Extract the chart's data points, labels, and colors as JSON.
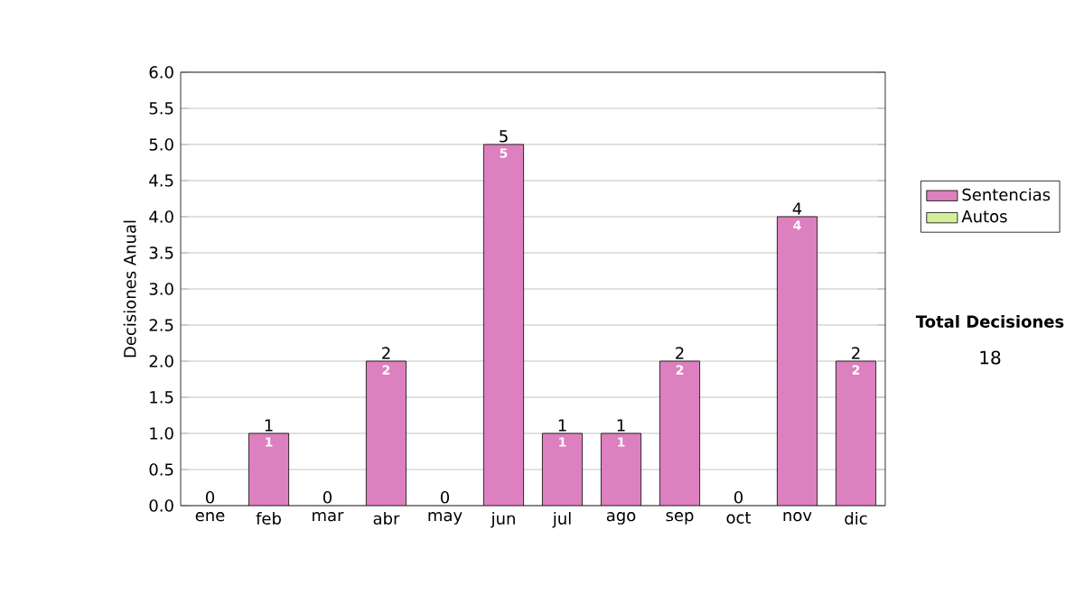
{
  "chart_data": {
    "type": "bar",
    "stacked": true,
    "ylabel": "Decisiones Anual",
    "categories": [
      "ene",
      "feb",
      "mar",
      "abr",
      "may",
      "jun",
      "jul",
      "ago",
      "sep",
      "oct",
      "nov",
      "dic"
    ],
    "series": [
      {
        "name": "Sentencias",
        "color": "#dd80bf",
        "values": [
          0,
          1,
          0,
          2,
          0,
          5,
          1,
          1,
          2,
          0,
          4,
          2
        ],
        "value_labels": [
          null,
          "1",
          null,
          "2",
          null,
          "5",
          "1",
          "1",
          "2",
          null,
          "4",
          "2"
        ]
      },
      {
        "name": "Autos",
        "color": "#d4ee9c",
        "values": [
          0,
          0,
          0,
          0,
          0,
          0,
          0,
          0,
          0,
          0,
          0,
          0
        ]
      }
    ],
    "totals": [
      "0",
      "1",
      "0",
      "2",
      "0",
      "5",
      "1",
      "1",
      "2",
      "0",
      "4",
      "2"
    ],
    "ylim": [
      0,
      6
    ],
    "yticks": [
      {
        "value": 0,
        "label": "0.0"
      },
      {
        "value": 0.5,
        "label": "0.5"
      },
      {
        "value": 1,
        "label": "1.0"
      },
      {
        "value": 1.5,
        "label": "1.5"
      },
      {
        "value": 2,
        "label": "2.0"
      },
      {
        "value": 2.5,
        "label": "2.5"
      },
      {
        "value": 3,
        "label": "3.0"
      },
      {
        "value": 3.5,
        "label": "3.5"
      },
      {
        "value": 4,
        "label": "4.0"
      },
      {
        "value": 4.5,
        "label": "4.5"
      },
      {
        "value": 5,
        "label": "5.0"
      },
      {
        "value": 5.5,
        "label": "5.5"
      },
      {
        "value": 6,
        "label": "6.0"
      }
    ],
    "grid": "y",
    "legend": "right",
    "annotations": [
      "Total Decisiones",
      "18"
    ]
  }
}
